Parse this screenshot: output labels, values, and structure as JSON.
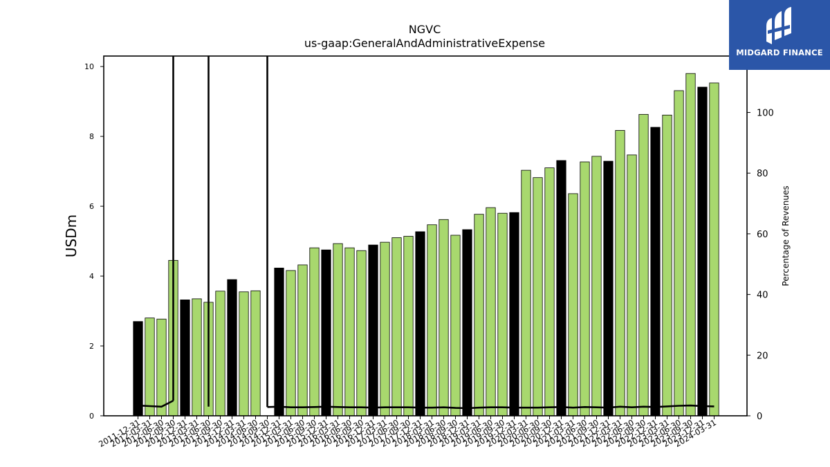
{
  "chart_data": {
    "type": "bar",
    "title": "NGVC",
    "subtitle": "us-gaap:GeneralAndAdministrativeExpense",
    "ylabel": "USDm",
    "y2label": "Percentage of Revenues",
    "ylim": [
      0,
      10.3
    ],
    "y2lim": [
      0,
      118.6
    ],
    "yticks": [
      0,
      2,
      4,
      6,
      8,
      10
    ],
    "y2ticks": [
      0,
      20,
      40,
      60,
      80,
      100
    ],
    "grid": false,
    "colors": {
      "bar_quarter": "#a8d86e",
      "bar_annual": "#000000",
      "edge": "#000000",
      "line": "#000000"
    },
    "categories": [
      "2011-12-31",
      "2012-03-31",
      "2012-06-30",
      "2012-09-30",
      "2012-12-31",
      "2013-03-31",
      "2013-06-30",
      "2013-09-30",
      "2013-12-31",
      "2014-03-31",
      "2014-06-30",
      "2014-09-30",
      "2014-12-31",
      "2015-03-31",
      "2015-06-30",
      "2015-09-30",
      "2015-12-31",
      "2016-03-31",
      "2016-06-30",
      "2016-09-30",
      "2016-12-31",
      "2017-03-31",
      "2017-06-30",
      "2017-09-30",
      "2017-12-31",
      "2018-03-31",
      "2018-06-30",
      "2018-09-30",
      "2018-12-31",
      "2019-03-31",
      "2019-06-30",
      "2019-09-30",
      "2019-12-31",
      "2020-03-31",
      "2020-06-30",
      "2020-09-30",
      "2020-12-31",
      "2021-03-31",
      "2021-06-30",
      "2021-09-30",
      "2021-12-31",
      "2022-03-31",
      "2022-06-30",
      "2022-09-30",
      "2022-12-31",
      "2023-03-31",
      "2023-06-30",
      "2023-09-30",
      "2023-12-31",
      "2024-03-31"
    ],
    "series": [
      {
        "kind": "bar",
        "axis": "left",
        "values": [
          2.7,
          2.8,
          2.77,
          4.45,
          3.32,
          3.35,
          3.25,
          3.57,
          3.9,
          3.55,
          3.58,
          null,
          4.23,
          4.16,
          4.32,
          4.81,
          4.75,
          4.93,
          4.81,
          4.73,
          4.89,
          4.97,
          5.1,
          5.14,
          5.27,
          5.47,
          5.62,
          5.17,
          5.33,
          5.77,
          5.96,
          5.8,
          5.82,
          7.03,
          6.82,
          7.1,
          7.31,
          6.36,
          7.27,
          7.43,
          7.29,
          8.17,
          7.47,
          8.63,
          8.26,
          8.61,
          9.31,
          9.8,
          9.41,
          9.53
        ],
        "annual": [
          true,
          false,
          false,
          false,
          true,
          false,
          false,
          false,
          true,
          false,
          false,
          false,
          true,
          false,
          false,
          false,
          true,
          false,
          false,
          false,
          true,
          false,
          false,
          false,
          true,
          false,
          false,
          false,
          true,
          false,
          false,
          false,
          true,
          false,
          false,
          false,
          true,
          false,
          false,
          false,
          true,
          false,
          false,
          false,
          true,
          false,
          false,
          false,
          true,
          false
        ]
      },
      {
        "kind": "line",
        "axis": "right",
        "values": [
          3.4,
          3.2,
          3.0,
          5.0,
          null,
          null,
          3.0,
          null,
          null,
          null,
          null,
          2.9,
          3.0,
          2.8,
          2.8,
          2.9,
          3.0,
          2.9,
          2.8,
          2.8,
          2.7,
          2.8,
          2.8,
          2.8,
          2.7,
          2.7,
          2.8,
          2.6,
          2.5,
          2.7,
          2.8,
          2.8,
          2.7,
          2.7,
          2.7,
          2.8,
          2.9,
          2.7,
          2.9,
          2.8,
          2.7,
          3.0,
          2.8,
          3.0,
          2.9,
          3.1,
          3.3,
          3.4,
          3.2,
          3.1
        ]
      }
    ]
  },
  "logo": {
    "text": "MIDGARD FINANCE"
  }
}
